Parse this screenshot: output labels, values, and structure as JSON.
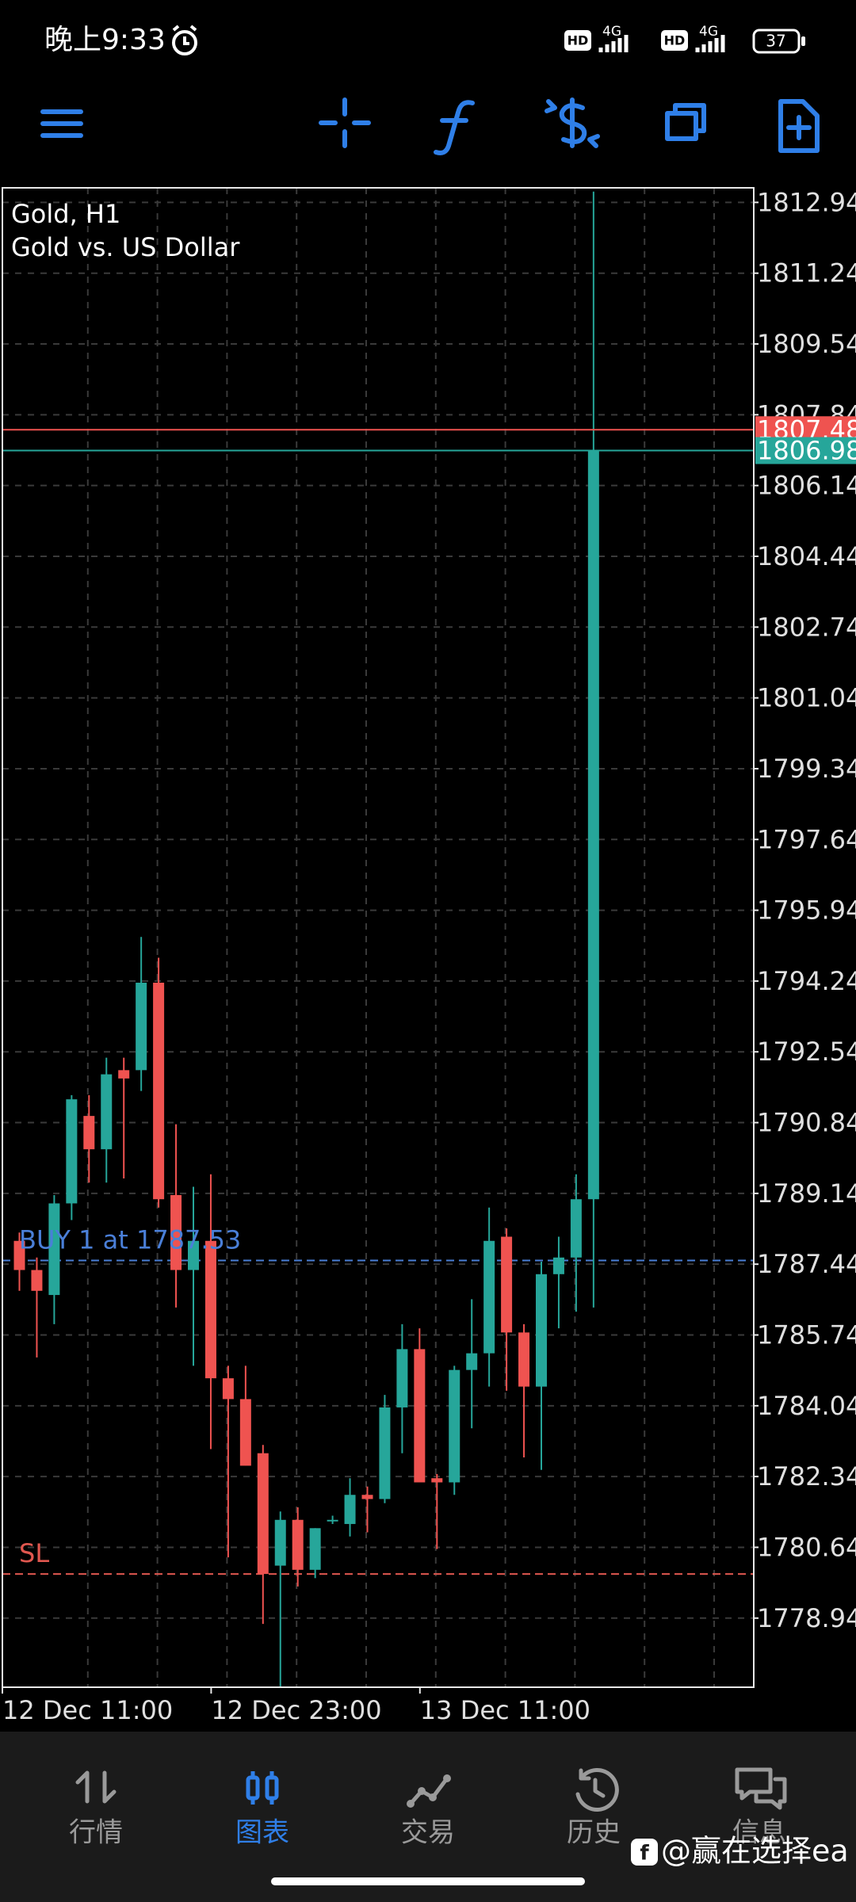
{
  "status_bar": {
    "time": "晚上9:33",
    "signal_labels": [
      "HD",
      "4G",
      "HD",
      "4G"
    ],
    "battery": "37"
  },
  "chart_data": {
    "type": "candlestick",
    "title": "Gold, H1",
    "subtitle": "Gold vs. US Dollar",
    "ylim": [
      1777.28,
      1813.29
    ],
    "yticks": [
      1812.94,
      1811.24,
      1809.54,
      1807.84,
      1806.14,
      1804.44,
      1802.74,
      1801.04,
      1799.34,
      1797.64,
      1795.94,
      1794.24,
      1792.54,
      1790.84,
      1789.14,
      1787.44,
      1785.74,
      1784.04,
      1782.34,
      1780.64,
      1778.94
    ],
    "grid": true,
    "up_color": "#26a69a",
    "down_color": "#ef5350",
    "open": [
      1788.0,
      1787.3,
      1786.7,
      1788.9,
      1791.0,
      1790.2,
      1792.1,
      1792.1,
      1794.2,
      1789.1,
      1787.3,
      1788.0,
      1784.7,
      1784.2,
      1782.9,
      1780.2,
      1781.3,
      1780.1,
      1781.3,
      1781.2,
      1781.9,
      1781.8,
      1784.0,
      1785.4,
      1782.3,
      1782.2,
      1784.9,
      1785.3,
      1788.1,
      1785.8,
      1784.5,
      1787.2,
      1787.6,
      1789.0
    ],
    "high": [
      1788.2,
      1787.6,
      1789.1,
      1791.5,
      1791.5,
      1792.4,
      1792.4,
      1795.3,
      1794.8,
      1790.8,
      1789.3,
      1789.6,
      1785.0,
      1785.0,
      1783.1,
      1781.5,
      1781.6,
      1781.1,
      1781.4,
      1782.3,
      1782.1,
      1784.3,
      1786.0,
      1785.9,
      1782.4,
      1785.0,
      1786.6,
      1788.8,
      1788.3,
      1786.0,
      1787.5,
      1788.1,
      1789.6,
      1813.2
    ],
    "low": [
      1786.8,
      1785.2,
      1786.0,
      1788.5,
      1789.4,
      1789.4,
      1789.5,
      1791.6,
      1788.8,
      1786.4,
      1785.0,
      1783.0,
      1780.4,
      1782.6,
      1778.8,
      1777.2,
      1779.7,
      1779.9,
      1781.2,
      1780.9,
      1781.0,
      1781.7,
      1782.9,
      1782.2,
      1780.6,
      1781.9,
      1783.5,
      1784.5,
      1784.4,
      1782.8,
      1782.5,
      1785.9,
      1786.3,
      1786.4
    ],
    "close": [
      1787.3,
      1786.8,
      1788.9,
      1791.4,
      1790.2,
      1792.0,
      1791.9,
      1794.2,
      1789.0,
      1787.3,
      1788.0,
      1784.7,
      1784.2,
      1782.6,
      1780.0,
      1781.3,
      1780.1,
      1781.1,
      1781.3,
      1781.9,
      1781.8,
      1784.0,
      1785.4,
      1782.2,
      1782.2,
      1784.9,
      1785.3,
      1788.0,
      1785.8,
      1784.5,
      1787.2,
      1787.6,
      1789.0,
      1806.98
    ],
    "x_labels": [
      "12 Dec 11:00",
      "12 Dec 23:00",
      "13 Dec 11:00"
    ],
    "bid": {
      "value": 1806.98,
      "color": "#26a69a"
    },
    "ask": {
      "value": 1807.48,
      "color": "#ef5350"
    },
    "annotations": [
      {
        "label": "BUY 1 at 1787.53",
        "value": 1787.53,
        "color": "#4a7fd8"
      },
      {
        "label": "SL",
        "value": 1780.0,
        "color": "#e0574f"
      }
    ]
  },
  "bottom_nav": {
    "items": [
      "行情",
      "图表",
      "交易",
      "历史",
      "信息"
    ],
    "active": 1
  },
  "watermark": "@赢在选择ea"
}
